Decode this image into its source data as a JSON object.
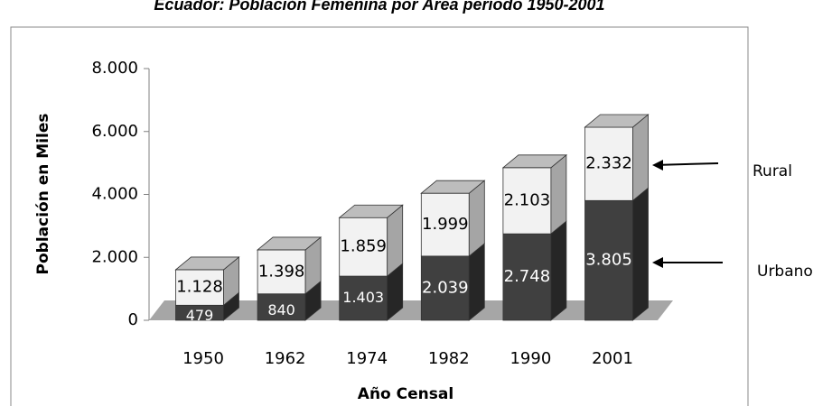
{
  "chart_data": {
    "type": "bar3d_stacked",
    "title": "Ecuador: Población Femenina por Área período 1950-2001",
    "x_label": "Año Censal",
    "y_label": "Población en Miles",
    "categories": [
      "1950",
      "1962",
      "1974",
      "1982",
      "1990",
      "2001"
    ],
    "series": [
      {
        "name": "Urbano",
        "color": "#404040",
        "values": [
          479,
          840,
          1403,
          2039,
          2748,
          3805
        ],
        "value_labels": [
          "479",
          "840",
          "1.403",
          "2.039",
          "2.748",
          "3.805"
        ]
      },
      {
        "name": "Rural",
        "color": "#f2f2f2",
        "values": [
          1128,
          1398,
          1859,
          1999,
          2103,
          2332
        ],
        "value_labels": [
          "1.128",
          "1.398",
          "1.859",
          "1.999",
          "2.103",
          "2.332"
        ]
      }
    ],
    "ylim": [
      0,
      8000
    ],
    "yticks": [
      0,
      {
        "value": 2000,
        "label": "2.000"
      },
      {
        "value": 4000,
        "label": "4.000"
      },
      {
        "value": 6000,
        "label": "6.000"
      },
      {
        "value": 8000,
        "label": "8.000"
      }
    ]
  }
}
